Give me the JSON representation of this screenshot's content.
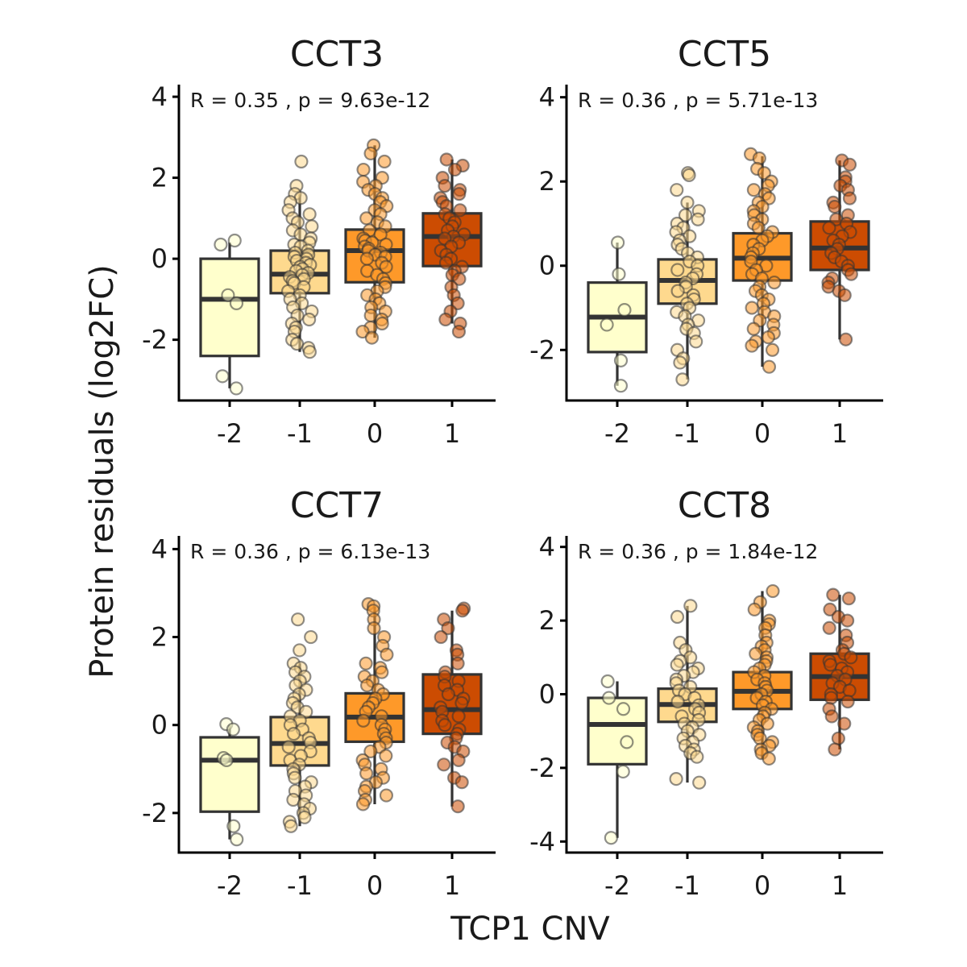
{
  "figure": {
    "xlabel": "TCP1 CNV",
    "ylabel": "Protein residuals (log2FC)"
  },
  "colors": {
    "-2": "#ffffcc",
    "-1": "#fed98e",
    "0": "#fe9929",
    "1": "#cc4c02"
  },
  "chart_data": [
    {
      "type": "box",
      "title": "CCT3",
      "annotation": "R =  0.35 , p =  9.63e-12",
      "categories": [
        "-2",
        "-1",
        "0",
        "1"
      ],
      "yticks": [
        "4",
        "2",
        "0",
        "-2"
      ],
      "ylim": [
        -3.5,
        4.3
      ],
      "boxes": [
        {
          "q1": -2.4,
          "median": -1.0,
          "q3": 0.0,
          "whisker_low": -3.2,
          "whisker_high": 0.4
        },
        {
          "q1": -0.85,
          "median": -0.38,
          "q3": 0.2,
          "whisker_low": -2.3,
          "whisker_high": 1.6
        },
        {
          "q1": -0.58,
          "median": 0.2,
          "q3": 0.72,
          "whisker_low": -1.95,
          "whisker_high": 2.8
        },
        {
          "q1": -0.18,
          "median": 0.55,
          "q3": 1.12,
          "whisker_low": -1.6,
          "whisker_high": 2.45
        }
      ],
      "points": [
        [
          0.45,
          0.35,
          -0.9,
          -1.1,
          -2.9,
          -3.2
        ],
        [
          2.4,
          1.8,
          1.6,
          1.5,
          1.4,
          1.2,
          1.1,
          1.0,
          0.9,
          0.8,
          0.7,
          0.6,
          0.5,
          0.4,
          0.35,
          0.3,
          0.2,
          0.15,
          0.1,
          0.05,
          0.0,
          -0.05,
          -0.1,
          -0.15,
          -0.2,
          -0.25,
          -0.3,
          -0.35,
          -0.4,
          -0.45,
          -0.5,
          -0.55,
          -0.6,
          -0.7,
          -0.8,
          -0.9,
          -1.0,
          -1.1,
          -1.2,
          -1.3,
          -1.4,
          -1.5,
          -1.6,
          -1.7,
          -1.8,
          -2.0,
          -2.1,
          -2.2,
          -2.3
        ],
        [
          2.8,
          2.6,
          2.4,
          2.2,
          2.0,
          1.9,
          1.8,
          1.7,
          1.6,
          1.5,
          1.4,
          1.3,
          1.2,
          1.1,
          1.0,
          0.9,
          0.8,
          0.7,
          0.6,
          0.5,
          0.45,
          0.4,
          0.35,
          0.3,
          0.25,
          0.2,
          0.15,
          0.1,
          0.05,
          0.0,
          -0.1,
          -0.2,
          -0.3,
          -0.4,
          -0.5,
          -0.6,
          -0.7,
          -0.8,
          -0.9,
          -1.0,
          -1.1,
          -1.2,
          -1.3,
          -1.4,
          -1.5,
          -1.6,
          -1.7,
          -1.8,
          -1.95
        ],
        [
          2.45,
          2.3,
          2.2,
          2.0,
          1.8,
          1.7,
          1.6,
          1.5,
          1.4,
          1.3,
          1.2,
          1.1,
          1.0,
          0.9,
          0.8,
          0.7,
          0.6,
          0.55,
          0.5,
          0.4,
          0.3,
          0.2,
          0.1,
          0.0,
          -0.1,
          -0.2,
          -0.3,
          -0.4,
          -0.5,
          -0.7,
          -0.9,
          -1.1,
          -1.3,
          -1.5,
          -1.6,
          -1.8
        ]
      ]
    },
    {
      "type": "box",
      "title": "CCT5",
      "annotation": "R =  0.36 , p =  5.71e-13",
      "categories": [
        "-2",
        "-1",
        "0",
        "1"
      ],
      "yticks": [
        "4",
        "2",
        "0",
        "-2"
      ],
      "ylim": [
        -3.2,
        4.3
      ],
      "boxes": [
        {
          "q1": -2.05,
          "median": -1.22,
          "q3": -0.4,
          "whisker_low": -2.85,
          "whisker_high": 0.55
        },
        {
          "q1": -0.9,
          "median": -0.35,
          "q3": 0.15,
          "whisker_low": -2.7,
          "whisker_high": 1.5
        },
        {
          "q1": -0.35,
          "median": 0.18,
          "q3": 0.77,
          "whisker_low": -2.4,
          "whisker_high": 2.6
        },
        {
          "q1": -0.1,
          "median": 0.42,
          "q3": 1.05,
          "whisker_low": -1.75,
          "whisker_high": 2.5
        }
      ],
      "points": [
        [
          0.55,
          -0.2,
          -1.05,
          -1.4,
          -2.25,
          -2.85
        ],
        [
          2.2,
          2.15,
          1.8,
          1.5,
          1.3,
          1.2,
          1.1,
          1.0,
          0.9,
          0.8,
          0.7,
          0.6,
          0.5,
          0.4,
          0.3,
          0.2,
          0.1,
          0.0,
          -0.1,
          -0.2,
          -0.3,
          -0.4,
          -0.5,
          -0.6,
          -0.7,
          -0.8,
          -0.9,
          -1.0,
          -1.1,
          -1.2,
          -1.3,
          -1.4,
          -1.5,
          -1.6,
          -1.8,
          -2.0,
          -2.2,
          -2.3,
          -2.7
        ],
        [
          2.65,
          2.55,
          2.3,
          2.2,
          2.0,
          1.9,
          1.8,
          1.7,
          1.6,
          1.5,
          1.4,
          1.3,
          1.2,
          1.1,
          1.0,
          0.9,
          0.8,
          0.7,
          0.6,
          0.5,
          0.4,
          0.3,
          0.2,
          0.1,
          0.0,
          -0.1,
          -0.2,
          -0.3,
          -0.4,
          -0.5,
          -0.6,
          -0.7,
          -0.8,
          -0.9,
          -1.0,
          -1.1,
          -1.2,
          -1.3,
          -1.4,
          -1.5,
          -1.6,
          -1.7,
          -1.8,
          -1.9,
          -2.0,
          -2.4
        ],
        [
          2.5,
          2.4,
          2.1,
          2.0,
          1.9,
          1.8,
          1.6,
          1.5,
          1.4,
          1.2,
          1.1,
          1.0,
          0.9,
          0.8,
          0.7,
          0.6,
          0.5,
          0.4,
          0.3,
          0.2,
          0.1,
          0.0,
          -0.1,
          -0.2,
          -0.3,
          -0.4,
          -0.5,
          -0.6,
          -0.7,
          -1.75
        ]
      ]
    },
    {
      "type": "box",
      "title": "CCT7",
      "annotation": "R =  0.36 , p =  6.13e-13",
      "categories": [
        "-2",
        "-1",
        "0",
        "1"
      ],
      "yticks": [
        "4",
        "2",
        "0",
        "-2"
      ],
      "ylim": [
        -2.9,
        4.3
      ],
      "boxes": [
        {
          "q1": -1.97,
          "median": -0.8,
          "q3": -0.28,
          "whisker_low": -2.6,
          "whisker_high": 0.0
        },
        {
          "q1": -0.92,
          "median": -0.42,
          "q3": 0.18,
          "whisker_low": -2.3,
          "whisker_high": 1.4
        },
        {
          "q1": -0.38,
          "median": 0.18,
          "q3": 0.72,
          "whisker_low": -1.8,
          "whisker_high": 2.7
        },
        {
          "q1": -0.2,
          "median": 0.35,
          "q3": 1.15,
          "whisker_low": -1.85,
          "whisker_high": 2.6
        }
      ],
      "points": [
        [
          0.02,
          -0.1,
          -0.75,
          -0.8,
          -2.3,
          -2.6
        ],
        [
          2.4,
          2.0,
          1.7,
          1.4,
          1.3,
          1.2,
          1.1,
          1.0,
          0.9,
          0.8,
          0.7,
          0.6,
          0.5,
          0.4,
          0.3,
          0.2,
          0.1,
          0.0,
          -0.1,
          -0.2,
          -0.3,
          -0.4,
          -0.5,
          -0.6,
          -0.7,
          -0.8,
          -0.9,
          -1.0,
          -1.1,
          -1.2,
          -1.3,
          -1.4,
          -1.5,
          -1.6,
          -1.7,
          -1.8,
          -1.9,
          -2.0,
          -2.1,
          -2.2,
          -2.3
        ],
        [
          2.75,
          2.7,
          2.6,
          2.4,
          2.2,
          2.0,
          1.8,
          1.6,
          1.4,
          1.3,
          1.2,
          1.1,
          1.0,
          0.9,
          0.8,
          0.7,
          0.6,
          0.5,
          0.4,
          0.3,
          0.2,
          0.1,
          0.0,
          -0.1,
          -0.2,
          -0.3,
          -0.4,
          -0.5,
          -0.6,
          -0.7,
          -0.8,
          -0.9,
          -1.0,
          -1.1,
          -1.2,
          -1.3,
          -1.4,
          -1.5,
          -1.6,
          -1.7,
          -1.8
        ],
        [
          2.65,
          2.6,
          2.4,
          2.2,
          2.0,
          1.7,
          1.6,
          1.4,
          1.2,
          1.1,
          1.0,
          0.9,
          0.8,
          0.7,
          0.6,
          0.5,
          0.4,
          0.3,
          0.2,
          0.1,
          0.0,
          -0.1,
          -0.2,
          -0.3,
          -0.4,
          -0.5,
          -0.6,
          -0.8,
          -0.9,
          -1.2,
          -1.3,
          -1.85
        ]
      ]
    },
    {
      "type": "box",
      "title": "CCT8",
      "annotation": "R =  0.36 , p =  1.84e-12",
      "categories": [
        "-2",
        "-1",
        "0",
        "1"
      ],
      "yticks": [
        "4",
        "2",
        "0",
        "-2",
        "-4"
      ],
      "ylim": [
        -4.3,
        4.3
      ],
      "boxes": [
        {
          "q1": -1.9,
          "median": -0.82,
          "q3": -0.1,
          "whisker_low": -3.9,
          "whisker_high": 0.35
        },
        {
          "q1": -0.75,
          "median": -0.28,
          "q3": 0.15,
          "whisker_low": -2.4,
          "whisker_high": 2.4
        },
        {
          "q1": -0.4,
          "median": 0.08,
          "q3": 0.6,
          "whisker_low": -1.75,
          "whisker_high": 2.8
        },
        {
          "q1": -0.15,
          "median": 0.48,
          "q3": 1.1,
          "whisker_low": -1.5,
          "whisker_high": 2.7
        }
      ],
      "points": [
        [
          0.35,
          -0.1,
          -0.4,
          -1.3,
          -2.1,
          -3.9
        ],
        [
          2.4,
          2.1,
          1.4,
          1.2,
          1.0,
          0.9,
          0.8,
          0.7,
          0.6,
          0.5,
          0.4,
          0.3,
          0.2,
          0.1,
          0.0,
          -0.1,
          -0.2,
          -0.3,
          -0.4,
          -0.5,
          -0.6,
          -0.7,
          -0.8,
          -0.9,
          -1.0,
          -1.1,
          -1.2,
          -1.3,
          -1.4,
          -1.5,
          -1.6,
          -1.7,
          -2.3,
          -2.4
        ],
        [
          2.8,
          2.5,
          2.3,
          2.0,
          1.9,
          1.8,
          1.6,
          1.4,
          1.3,
          1.2,
          1.1,
          1.0,
          0.9,
          0.8,
          0.7,
          0.6,
          0.5,
          0.4,
          0.3,
          0.2,
          0.1,
          0.0,
          -0.1,
          -0.2,
          -0.3,
          -0.4,
          -0.5,
          -0.6,
          -0.7,
          -0.8,
          -0.9,
          -1.0,
          -1.1,
          -1.2,
          -1.3,
          -1.4,
          -1.5,
          -1.6,
          -1.75
        ],
        [
          2.7,
          2.6,
          2.3,
          2.1,
          2.0,
          1.8,
          1.6,
          1.4,
          1.2,
          1.1,
          1.0,
          0.9,
          0.8,
          0.7,
          0.6,
          0.5,
          0.4,
          0.3,
          0.2,
          0.1,
          0.0,
          -0.1,
          -0.2,
          -0.4,
          -0.6,
          -0.8,
          -1.2,
          -1.5
        ]
      ]
    }
  ]
}
